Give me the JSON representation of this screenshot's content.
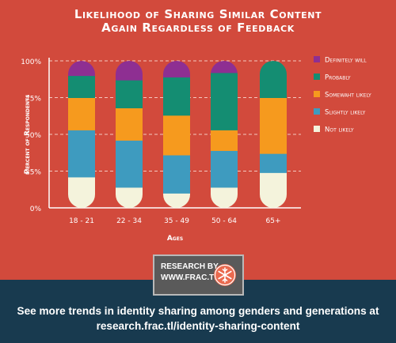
{
  "header": {
    "title_line1": "Likelihood of Sharing Similar Content",
    "title_line2": "Again Regardless of Feedback"
  },
  "colors": {
    "background": "#d24a3c",
    "footer": "#183a4f",
    "text": "#ffffff"
  },
  "chart_data": {
    "type": "bar",
    "stacked": true,
    "categories": [
      "18 - 21",
      "22 - 34",
      "35 - 49",
      "50 - 64",
      "65+"
    ],
    "series": [
      {
        "name": "Not likely",
        "color": "#f4f3dc",
        "values": [
          21,
          14,
          10,
          14,
          24
        ]
      },
      {
        "name": "Slightly likely",
        "color": "#3e9bbf",
        "values": [
          32,
          32,
          26,
          25,
          13
        ]
      },
      {
        "name": "Somewaht likely",
        "color": "#f69a1e",
        "values": [
          22,
          22,
          27,
          14,
          38
        ]
      },
      {
        "name": "Probably",
        "color": "#148d72",
        "values": [
          15,
          19,
          26,
          39,
          25
        ]
      },
      {
        "name": "Definitely will",
        "color": "#8e2f92",
        "values": [
          10,
          13,
          11,
          8,
          0
        ]
      }
    ],
    "xlabel": "Ages",
    "ylabel": "Percent of Respondents",
    "ylim": [
      0,
      100
    ],
    "yticks": [
      "0%",
      "25%",
      "50%",
      "75%",
      "100%"
    ],
    "grid": true,
    "legend_position": "right"
  },
  "badge": {
    "line1": "RESEARCH BY",
    "line2": "WWW.FRAC.TL",
    "logo_icon": "snowflake-icon"
  },
  "footer": {
    "line1": "See more trends in identity sharing among genders and generations at",
    "line2": "research.frac.tl/identity-sharing-content"
  }
}
